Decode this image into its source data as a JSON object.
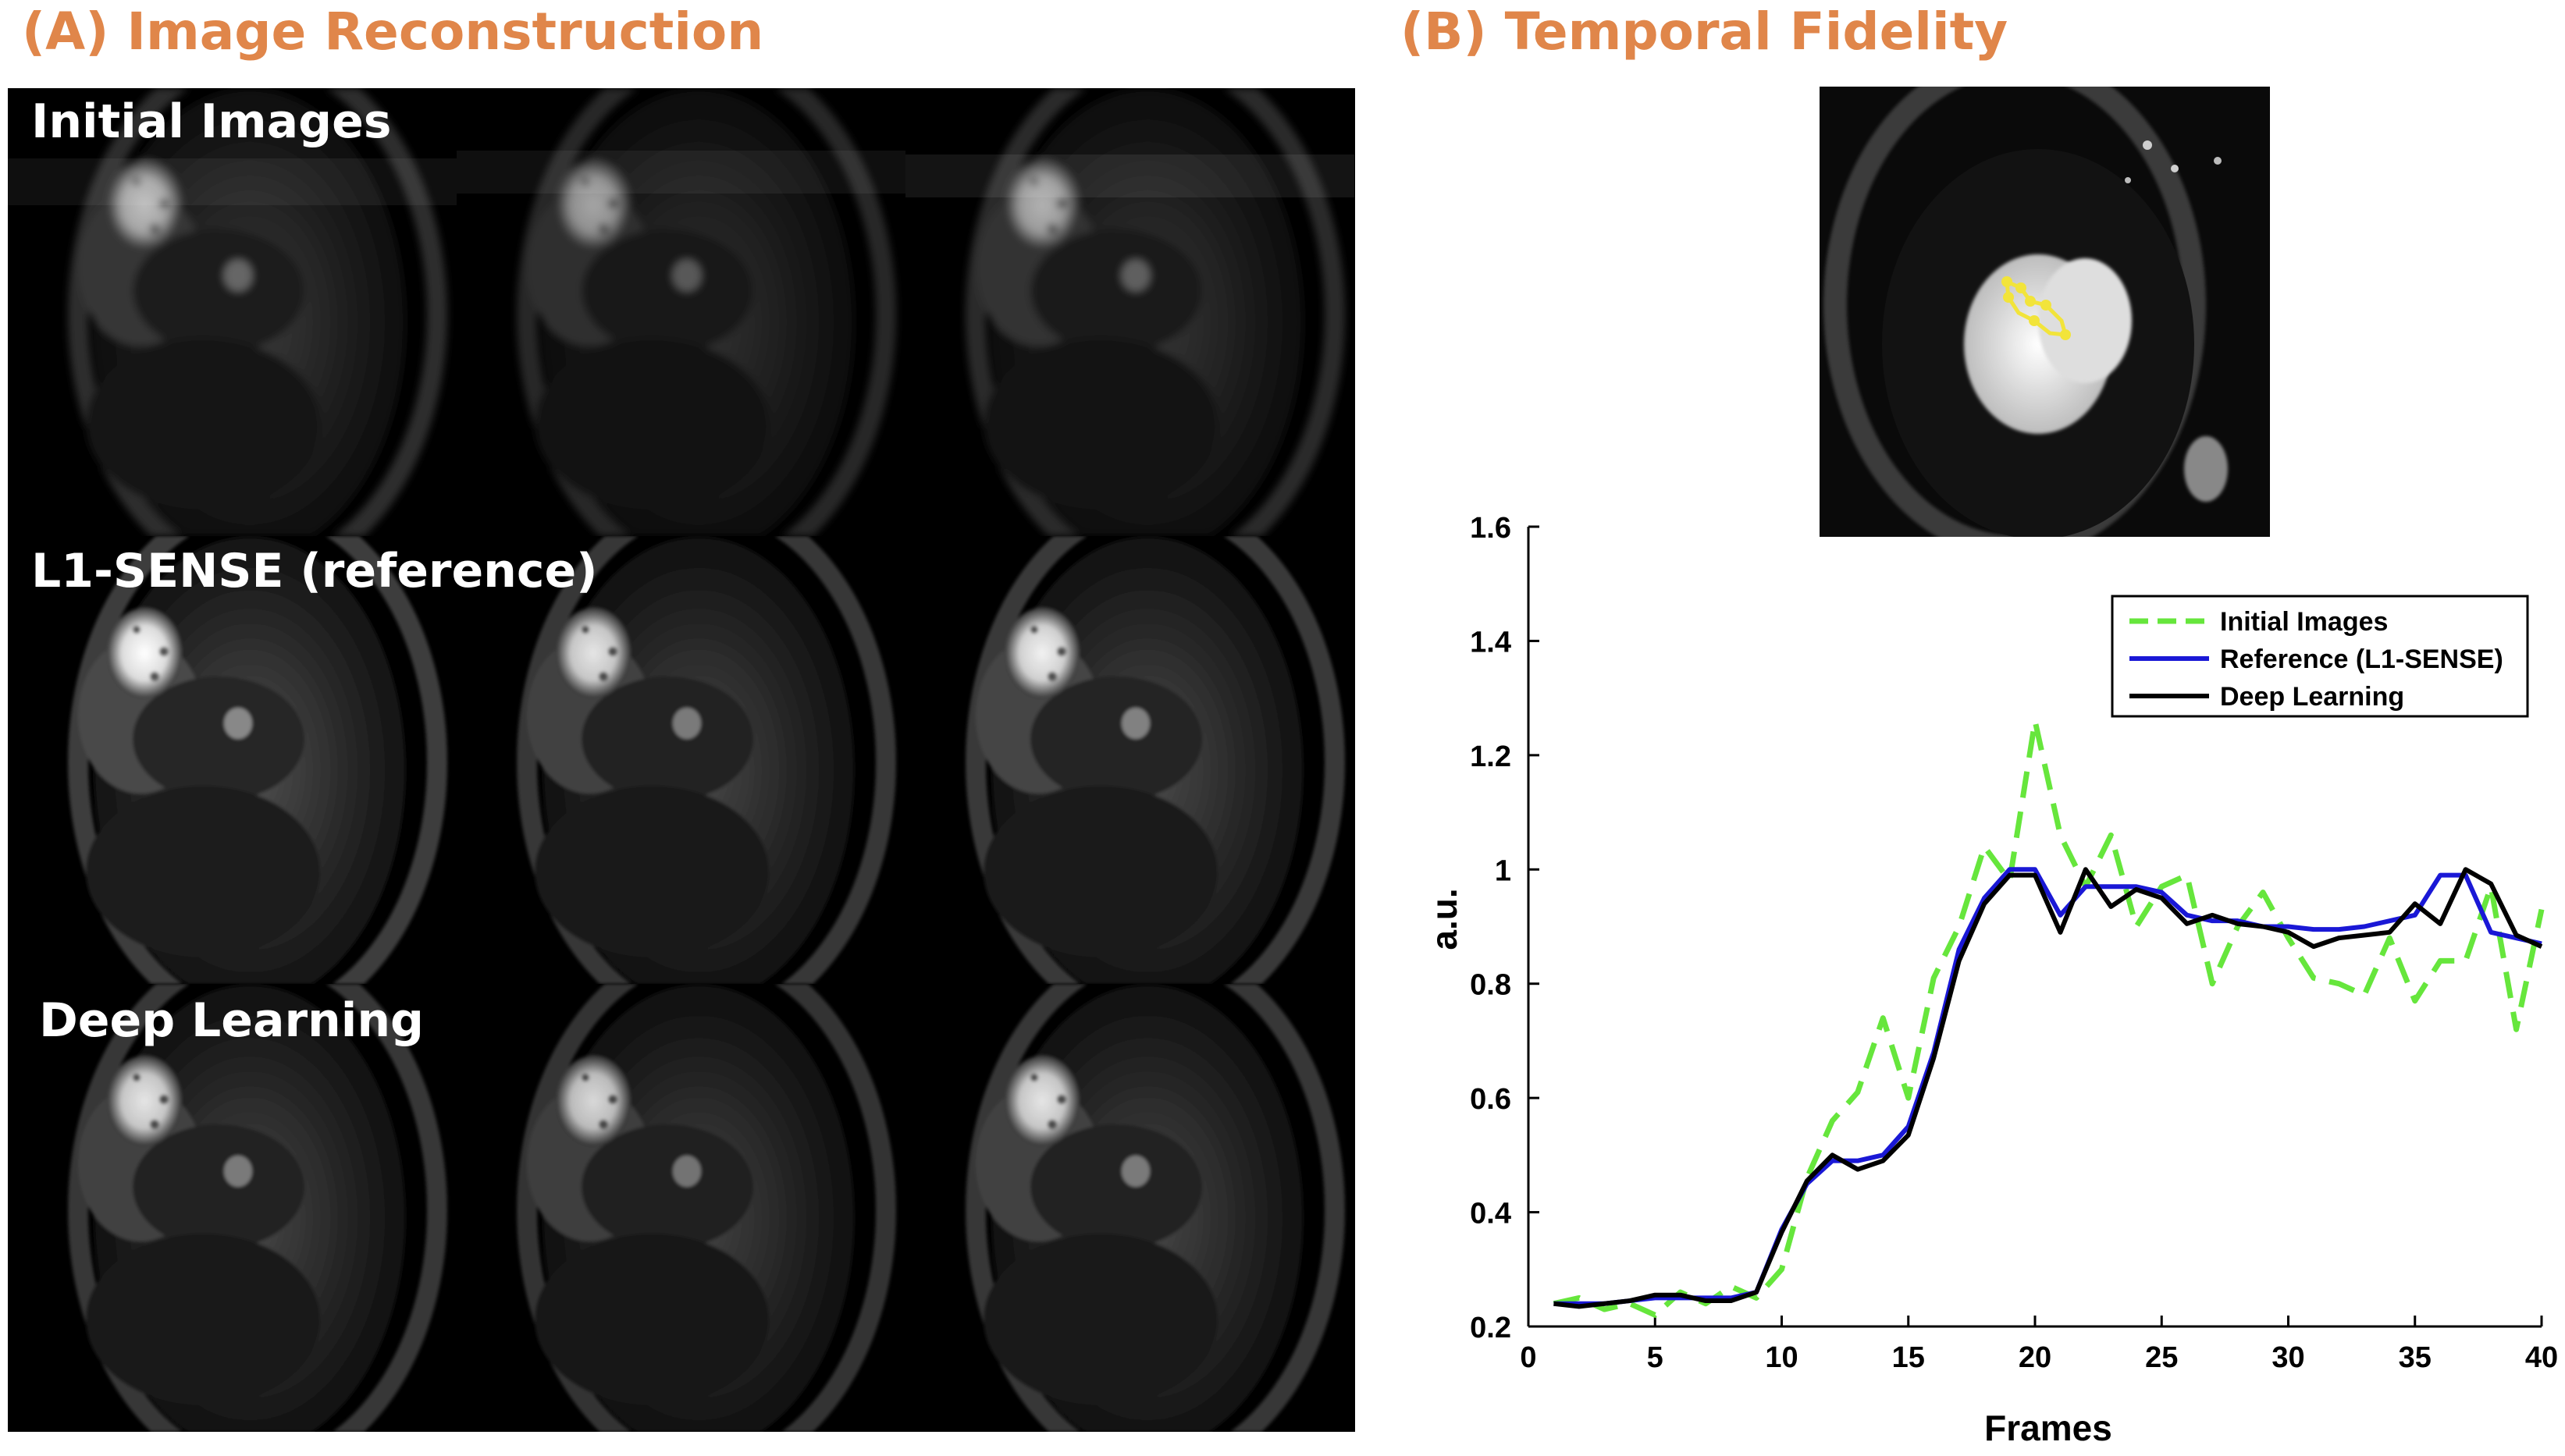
{
  "panel_a": {
    "title": "(A) Image Reconstruction",
    "rows": [
      {
        "label": "Initial Images"
      },
      {
        "label": "L1-SENSE (reference)"
      },
      {
        "label": "Deep Learning"
      }
    ]
  },
  "panel_b": {
    "title": "(B) Temporal Fidelity"
  },
  "chart_data": {
    "type": "line",
    "title": "",
    "xlabel": "Frames",
    "ylabel": "a.u.",
    "xlim": [
      0,
      40
    ],
    "ylim": [
      0.2,
      1.6
    ],
    "xticks": [
      0,
      5,
      10,
      15,
      20,
      25,
      30,
      35,
      40
    ],
    "yticks": [
      0.2,
      0.4,
      0.6,
      0.8,
      1,
      1.2,
      1.4,
      1.6
    ],
    "xtick_labels": [
      "0",
      "5",
      "10",
      "15",
      "20",
      "25",
      "30",
      "35",
      "40"
    ],
    "ytick_labels": [
      "0.2",
      "0.4",
      "0.6",
      "0.8",
      "1",
      "1.2",
      "1.4",
      "1.6"
    ],
    "legend_position": "top-right",
    "x": [
      1,
      2,
      3,
      4,
      5,
      6,
      7,
      8,
      9,
      10,
      11,
      12,
      13,
      14,
      15,
      16,
      17,
      18,
      19,
      20,
      21,
      22,
      23,
      24,
      25,
      26,
      27,
      28,
      29,
      30,
      31,
      32,
      33,
      34,
      35,
      36,
      37,
      38,
      39,
      40
    ],
    "series": [
      {
        "name": "Initial Images",
        "color": "#66e63c",
        "style": "dashed",
        "values": [
          0.24,
          0.25,
          0.23,
          0.24,
          0.22,
          0.26,
          0.24,
          0.27,
          0.25,
          0.3,
          0.46,
          0.56,
          0.61,
          0.74,
          0.6,
          0.81,
          0.9,
          1.04,
          0.98,
          1.26,
          1.06,
          0.97,
          1.06,
          0.9,
          0.97,
          0.99,
          0.8,
          0.9,
          0.96,
          0.88,
          0.81,
          0.8,
          0.78,
          0.88,
          0.77,
          0.84,
          0.84,
          0.97,
          0.72,
          0.93
        ]
      },
      {
        "name": "Reference (L1-SENSE)",
        "color": "#1a18d6",
        "style": "solid",
        "values": [
          0.24,
          0.24,
          0.24,
          0.245,
          0.25,
          0.25,
          0.25,
          0.25,
          0.26,
          0.37,
          0.45,
          0.49,
          0.49,
          0.5,
          0.55,
          0.68,
          0.86,
          0.95,
          1.0,
          1.0,
          0.92,
          0.97,
          0.97,
          0.97,
          0.96,
          0.92,
          0.91,
          0.91,
          0.9,
          0.9,
          0.895,
          0.895,
          0.9,
          0.91,
          0.92,
          0.99,
          0.99,
          0.89,
          0.88,
          0.87
        ]
      },
      {
        "name": "Deep Learning",
        "color": "#000000",
        "style": "solid",
        "values": [
          0.24,
          0.235,
          0.24,
          0.245,
          0.255,
          0.255,
          0.245,
          0.245,
          0.26,
          0.365,
          0.455,
          0.5,
          0.475,
          0.49,
          0.535,
          0.67,
          0.84,
          0.94,
          0.99,
          0.99,
          0.89,
          1.0,
          0.935,
          0.965,
          0.95,
          0.905,
          0.92,
          0.905,
          0.9,
          0.89,
          0.865,
          0.88,
          0.885,
          0.89,
          0.94,
          0.905,
          1.0,
          0.975,
          0.885,
          0.865
        ]
      }
    ]
  }
}
